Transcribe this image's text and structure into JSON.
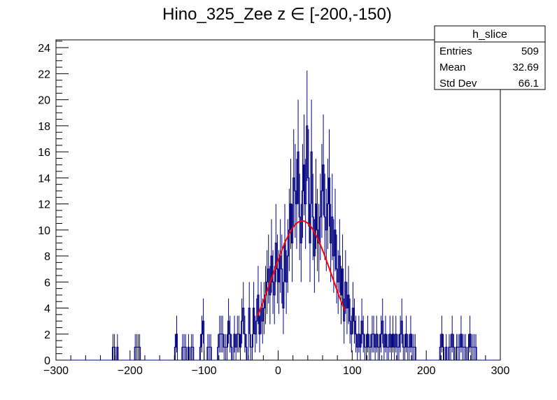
{
  "chart_data": {
    "type": "histogram",
    "title": "Hino_325_Zee z  ∈ [-200,-150)",
    "xlim": [
      -300,
      300
    ],
    "ylim": [
      0,
      24.6
    ],
    "x_ticks": [
      -300,
      -200,
      -100,
      0,
      100,
      200,
      300
    ],
    "y_ticks": [
      0,
      2,
      4,
      6,
      8,
      10,
      12,
      14,
      16,
      18,
      20,
      22,
      24
    ],
    "x_tick_labels": [
      "−300",
      "−200",
      "−100",
      "0",
      "100",
      "200",
      "300"
    ],
    "bin_width": 2,
    "line_color": "#000080",
    "fit_color": "#ff0000",
    "bins": [
      [
        -224,
        1
      ],
      [
        -222,
        1
      ],
      [
        -218,
        1
      ],
      [
        -194,
        1
      ],
      [
        -192,
        1
      ],
      [
        -190,
        1
      ],
      [
        -188,
        1
      ],
      [
        -140,
        1
      ],
      [
        -138,
        2
      ],
      [
        -130,
        1
      ],
      [
        -128,
        1
      ],
      [
        -126,
        1
      ],
      [
        -122,
        1
      ],
      [
        -118,
        1
      ],
      [
        -116,
        1
      ],
      [
        -106,
        1
      ],
      [
        -104,
        2
      ],
      [
        -102,
        3
      ],
      [
        -96,
        1
      ],
      [
        -94,
        1
      ],
      [
        -92,
        1
      ],
      [
        -82,
        1
      ],
      [
        -80,
        2
      ],
      [
        -78,
        2
      ],
      [
        -76,
        2
      ],
      [
        -74,
        1
      ],
      [
        -72,
        1
      ],
      [
        -70,
        1
      ],
      [
        -68,
        3
      ],
      [
        -66,
        2
      ],
      [
        -64,
        1
      ],
      [
        -60,
        2
      ],
      [
        -58,
        1
      ],
      [
        -56,
        2
      ],
      [
        -54,
        2
      ],
      [
        -52,
        1
      ],
      [
        -50,
        3
      ],
      [
        -48,
        4
      ],
      [
        -46,
        2
      ],
      [
        -44,
        1
      ],
      [
        -40,
        4
      ],
      [
        -38,
        1
      ],
      [
        -36,
        1
      ],
      [
        -34,
        4
      ],
      [
        -32,
        2
      ],
      [
        -30,
        3
      ],
      [
        -28,
        5
      ],
      [
        -26,
        2
      ],
      [
        -24,
        4
      ],
      [
        -22,
        3
      ],
      [
        -20,
        4
      ],
      [
        -18,
        5
      ],
      [
        -16,
        6
      ],
      [
        -14,
        7
      ],
      [
        -12,
        5
      ],
      [
        -10,
        8
      ],
      [
        -8,
        6
      ],
      [
        -6,
        5
      ],
      [
        -4,
        9
      ],
      [
        -2,
        7
      ],
      [
        0,
        6
      ],
      [
        2,
        8
      ],
      [
        4,
        7
      ],
      [
        6,
        4
      ],
      [
        8,
        9
      ],
      [
        10,
        6
      ],
      [
        12,
        8
      ],
      [
        14,
        10
      ],
      [
        16,
        12
      ],
      [
        18,
        9
      ],
      [
        20,
        14
      ],
      [
        22,
        13
      ],
      [
        24,
        12
      ],
      [
        26,
        16
      ],
      [
        28,
        11
      ],
      [
        30,
        9
      ],
      [
        32,
        13
      ],
      [
        34,
        15
      ],
      [
        36,
        12
      ],
      [
        38,
        18
      ],
      [
        40,
        14
      ],
      [
        42,
        9
      ],
      [
        44,
        16
      ],
      [
        46,
        11
      ],
      [
        48,
        8
      ],
      [
        50,
        12
      ],
      [
        52,
        10
      ],
      [
        54,
        9
      ],
      [
        56,
        11
      ],
      [
        58,
        13
      ],
      [
        60,
        15
      ],
      [
        62,
        11
      ],
      [
        64,
        10
      ],
      [
        66,
        12
      ],
      [
        68,
        14
      ],
      [
        70,
        9
      ],
      [
        72,
        11
      ],
      [
        74,
        8
      ],
      [
        76,
        10
      ],
      [
        78,
        7
      ],
      [
        80,
        6
      ],
      [
        82,
        8
      ],
      [
        84,
        5
      ],
      [
        86,
        7
      ],
      [
        88,
        3
      ],
      [
        90,
        6
      ],
      [
        92,
        4
      ],
      [
        94,
        5
      ],
      [
        96,
        3
      ],
      [
        98,
        2
      ],
      [
        100,
        4
      ],
      [
        102,
        3
      ],
      [
        104,
        2
      ],
      [
        106,
        1
      ],
      [
        108,
        2
      ],
      [
        110,
        1
      ],
      [
        112,
        3
      ],
      [
        114,
        2
      ],
      [
        116,
        1
      ],
      [
        118,
        1
      ],
      [
        120,
        2
      ],
      [
        122,
        1
      ],
      [
        124,
        1
      ],
      [
        126,
        2
      ],
      [
        128,
        2
      ],
      [
        130,
        1
      ],
      [
        132,
        2
      ],
      [
        134,
        1
      ],
      [
        136,
        1
      ],
      [
        138,
        2
      ],
      [
        140,
        3
      ],
      [
        142,
        1
      ],
      [
        144,
        2
      ],
      [
        146,
        1
      ],
      [
        148,
        1
      ],
      [
        150,
        2
      ],
      [
        152,
        1
      ],
      [
        154,
        2
      ],
      [
        156,
        1
      ],
      [
        158,
        2
      ],
      [
        160,
        1
      ],
      [
        162,
        1
      ],
      [
        164,
        2
      ],
      [
        166,
        3
      ],
      [
        168,
        1
      ],
      [
        170,
        1
      ],
      [
        172,
        2
      ],
      [
        174,
        1
      ],
      [
        176,
        1
      ],
      [
        178,
        2
      ],
      [
        180,
        1
      ],
      [
        182,
        1
      ],
      [
        184,
        1
      ],
      [
        218,
        1
      ],
      [
        220,
        2
      ],
      [
        222,
        1
      ],
      [
        226,
        1
      ],
      [
        230,
        1
      ],
      [
        232,
        1
      ],
      [
        234,
        2
      ],
      [
        236,
        1
      ],
      [
        240,
        1
      ],
      [
        242,
        1
      ],
      [
        244,
        1
      ],
      [
        246,
        2
      ],
      [
        248,
        1
      ],
      [
        250,
        1
      ],
      [
        252,
        1
      ],
      [
        256,
        1
      ],
      [
        258,
        2
      ],
      [
        260,
        1
      ],
      [
        262,
        1
      ],
      [
        264,
        1
      ],
      [
        266,
        1
      ]
    ],
    "fit": {
      "function": "gaus",
      "amplitude": 10.7,
      "mean": 32.5,
      "sigma": 40,
      "x_range": [
        -28,
        90
      ]
    },
    "stats_box": {
      "title": "h_slice",
      "rows": [
        {
          "label": "Entries",
          "value": "509"
        },
        {
          "label": "Mean",
          "value": "32.69"
        },
        {
          "label": "Std Dev",
          "value": "66.1"
        }
      ]
    }
  }
}
